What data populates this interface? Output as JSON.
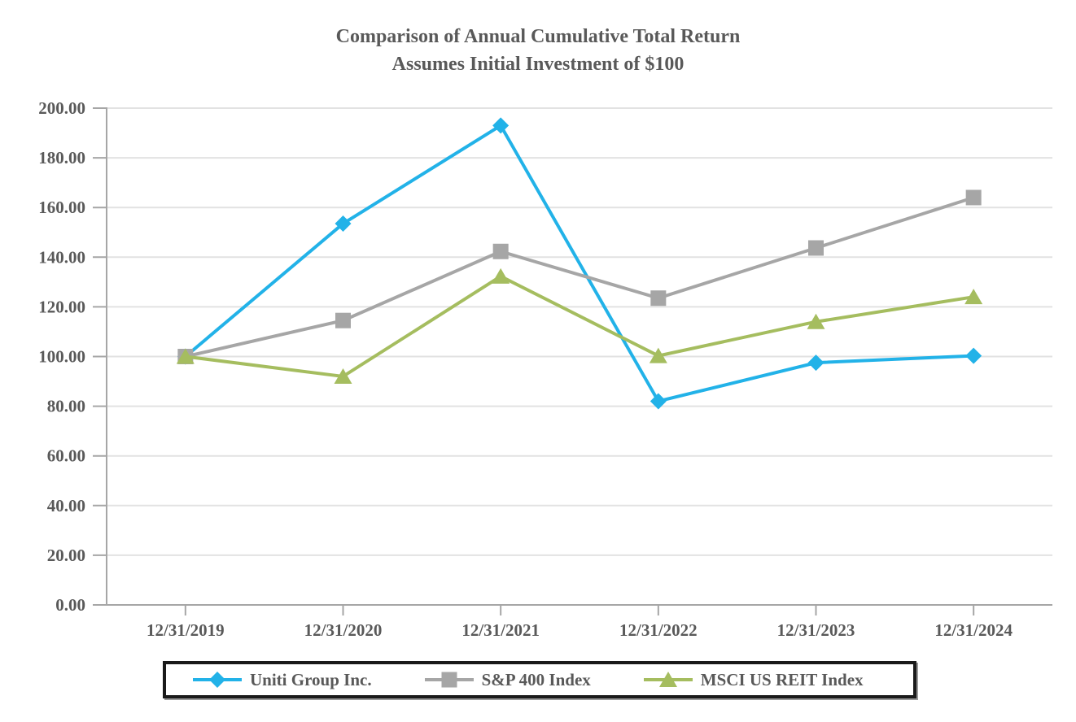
{
  "title": {
    "line1": "Comparison of Annual Cumulative Total Return",
    "line2": "Assumes Initial Investment of $100"
  },
  "chart_data": {
    "type": "line",
    "categories": [
      "12/31/2019",
      "12/31/2020",
      "12/31/2021",
      "12/31/2022",
      "12/31/2023",
      "12/31/2024"
    ],
    "series": [
      {
        "name": "Uniti Group Inc.",
        "color": "#22B2E8",
        "marker": "diamond",
        "values": [
          100.0,
          153.5,
          193.0,
          82.0,
          97.5,
          100.3
        ]
      },
      {
        "name": "S&P 400 Index",
        "color": "#A6A6A6",
        "marker": "square",
        "values": [
          100.0,
          114.5,
          142.3,
          123.5,
          143.7,
          164.0
        ]
      },
      {
        "name": "MSCI US REIT Index",
        "color": "#A5BD5F",
        "marker": "triangle",
        "values": [
          100.0,
          92.0,
          132.3,
          100.3,
          114.0,
          124.0
        ]
      }
    ],
    "title": "Comparison of Annual Cumulative Total Return — Assumes Initial Investment of $100",
    "xlabel": "",
    "ylabel": "",
    "ylim": [
      0,
      200
    ],
    "y_tick_step": 20,
    "y_tick_labels": [
      "0.00",
      "20.00",
      "40.00",
      "60.00",
      "80.00",
      "100.00",
      "120.00",
      "140.00",
      "160.00",
      "180.00",
      "200.00"
    ],
    "grid": true,
    "legend_position": "bottom"
  },
  "colors": {
    "text": "#595959",
    "axis": "#A6A6A6",
    "gridline": "#E2E2E2",
    "legend_border": "#1a1a1a"
  }
}
